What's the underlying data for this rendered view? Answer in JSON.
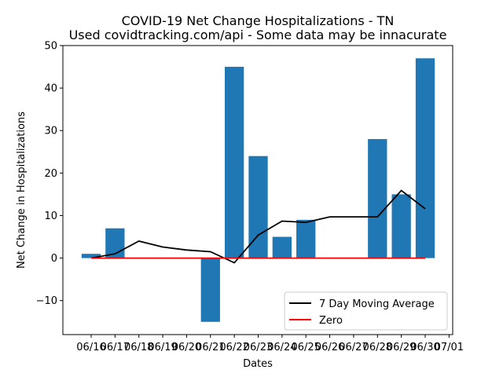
{
  "chart_data": {
    "type": "bar",
    "title": "COVID-19 Net Change Hospitalizations - TN",
    "subtitle": "Used covidtracking.com/api - Some data may be innacurate",
    "xlabel": "Dates",
    "ylabel": "Net Change in Hospitalizations",
    "ylim": [
      -18,
      50
    ],
    "yticks": [
      -10,
      0,
      10,
      20,
      30,
      40,
      50
    ],
    "xtick_labels": [
      "06/16",
      "06/17",
      "06/18",
      "06/19",
      "06/20",
      "06/21",
      "06/22",
      "06/23",
      "06/24",
      "06/25",
      "06/26",
      "06/27",
      "06/28",
      "06/29",
      "06/30",
      "07/01"
    ],
    "bars": {
      "dates": [
        "06/16",
        "06/17",
        "06/21",
        "06/22",
        "06/23",
        "06/24",
        "06/25",
        "06/28",
        "06/29",
        "06/30"
      ],
      "values": [
        1,
        7,
        -15,
        45,
        24,
        5,
        9,
        28,
        15,
        47
      ],
      "color": "#1f77b4"
    },
    "series": [
      {
        "name": "7 Day Moving Average",
        "type": "line",
        "color": "#000000",
        "dates": [
          "06/16",
          "06/17",
          "06/18",
          "06/19",
          "06/20",
          "06/21",
          "06/22",
          "06/23",
          "06/24",
          "06/25",
          "06/26",
          "06/27",
          "06/28",
          "06/29",
          "06/30"
        ],
        "values": [
          0,
          1,
          4,
          2.6,
          1.9,
          1.5,
          -1.1,
          5.4,
          8.7,
          8.4,
          9.7,
          9.7,
          9.7,
          15.9,
          11.6
        ]
      },
      {
        "name": "Zero",
        "type": "line",
        "color": "#ff0000",
        "dates": [
          "06/16",
          "06/30"
        ],
        "values": [
          0,
          0
        ]
      }
    ],
    "legend_position": "lower-right",
    "grid": false
  }
}
